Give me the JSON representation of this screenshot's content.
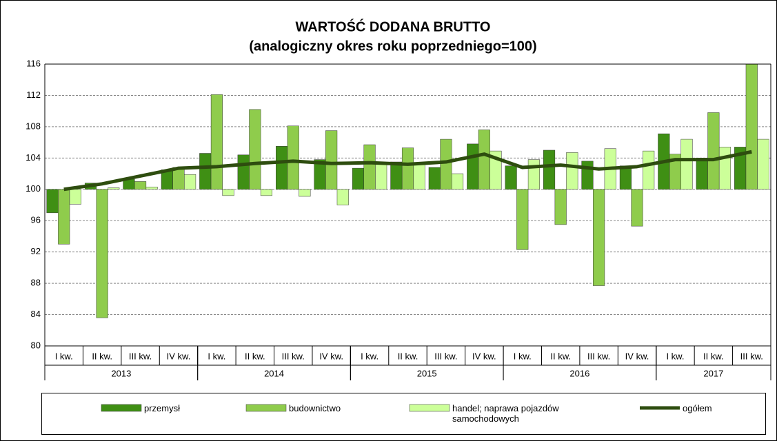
{
  "chart_data": {
    "type": "bar",
    "title": "WARTOŚĆ DODANA BRUTTO",
    "subtitle": "(analogiczny okres roku poprzedniego=100)",
    "categories": [
      "I kw.",
      "II kw.",
      "III kw.",
      "IV kw.",
      "I kw.",
      "II kw.",
      "III kw.",
      "IV kw.",
      "I kw.",
      "II kw.",
      "III kw.",
      "IV kw.",
      "I kw.",
      "II kw.",
      "III kw.",
      "IV kw.",
      "I kw.",
      "II kw.",
      "III kw."
    ],
    "groups": [
      {
        "label": "2013",
        "count": 4
      },
      {
        "label": "2014",
        "count": 4
      },
      {
        "label": "2015",
        "count": 4
      },
      {
        "label": "2016",
        "count": 4
      },
      {
        "label": "2017",
        "count": 3
      }
    ],
    "series": [
      {
        "name": "przemysł",
        "color": "#3f8f14",
        "values": [
          97.0,
          100.8,
          101.3,
          102.5,
          104.6,
          104.4,
          105.5,
          103.8,
          102.7,
          103.5,
          102.8,
          105.8,
          103.0,
          105.0,
          103.6,
          103.0,
          107.1,
          104.0,
          105.4
        ]
      },
      {
        "name": "budownictwo",
        "color": "#8fcc4c",
        "values": [
          93.0,
          83.6,
          101.0,
          102.8,
          112.1,
          110.2,
          108.1,
          107.5,
          105.7,
          105.3,
          106.4,
          107.6,
          92.3,
          95.5,
          87.7,
          95.3,
          104.5,
          109.8,
          117.0
        ]
      },
      {
        "name": "handel; naprawa pojazdów samochodowych",
        "color": "#ccff99",
        "values": [
          98.1,
          100.2,
          100.3,
          101.9,
          99.2,
          99.2,
          99.1,
          98.0,
          103.3,
          103.3,
          102.0,
          104.9,
          103.8,
          104.7,
          105.2,
          104.9,
          106.4,
          105.4,
          106.4
        ]
      },
      {
        "name": "ogółem",
        "color": "#2e4d0f",
        "line": true,
        "values": [
          100.0,
          100.7,
          101.7,
          102.7,
          102.9,
          103.3,
          103.6,
          103.3,
          103.4,
          103.2,
          103.5,
          104.5,
          102.8,
          103.1,
          102.6,
          102.9,
          103.8,
          103.8,
          104.8
        ]
      }
    ],
    "ylim": [
      80,
      116
    ],
    "yticks": [
      80,
      84,
      88,
      92,
      96,
      100,
      104,
      108,
      112,
      116
    ],
    "grid": true
  }
}
